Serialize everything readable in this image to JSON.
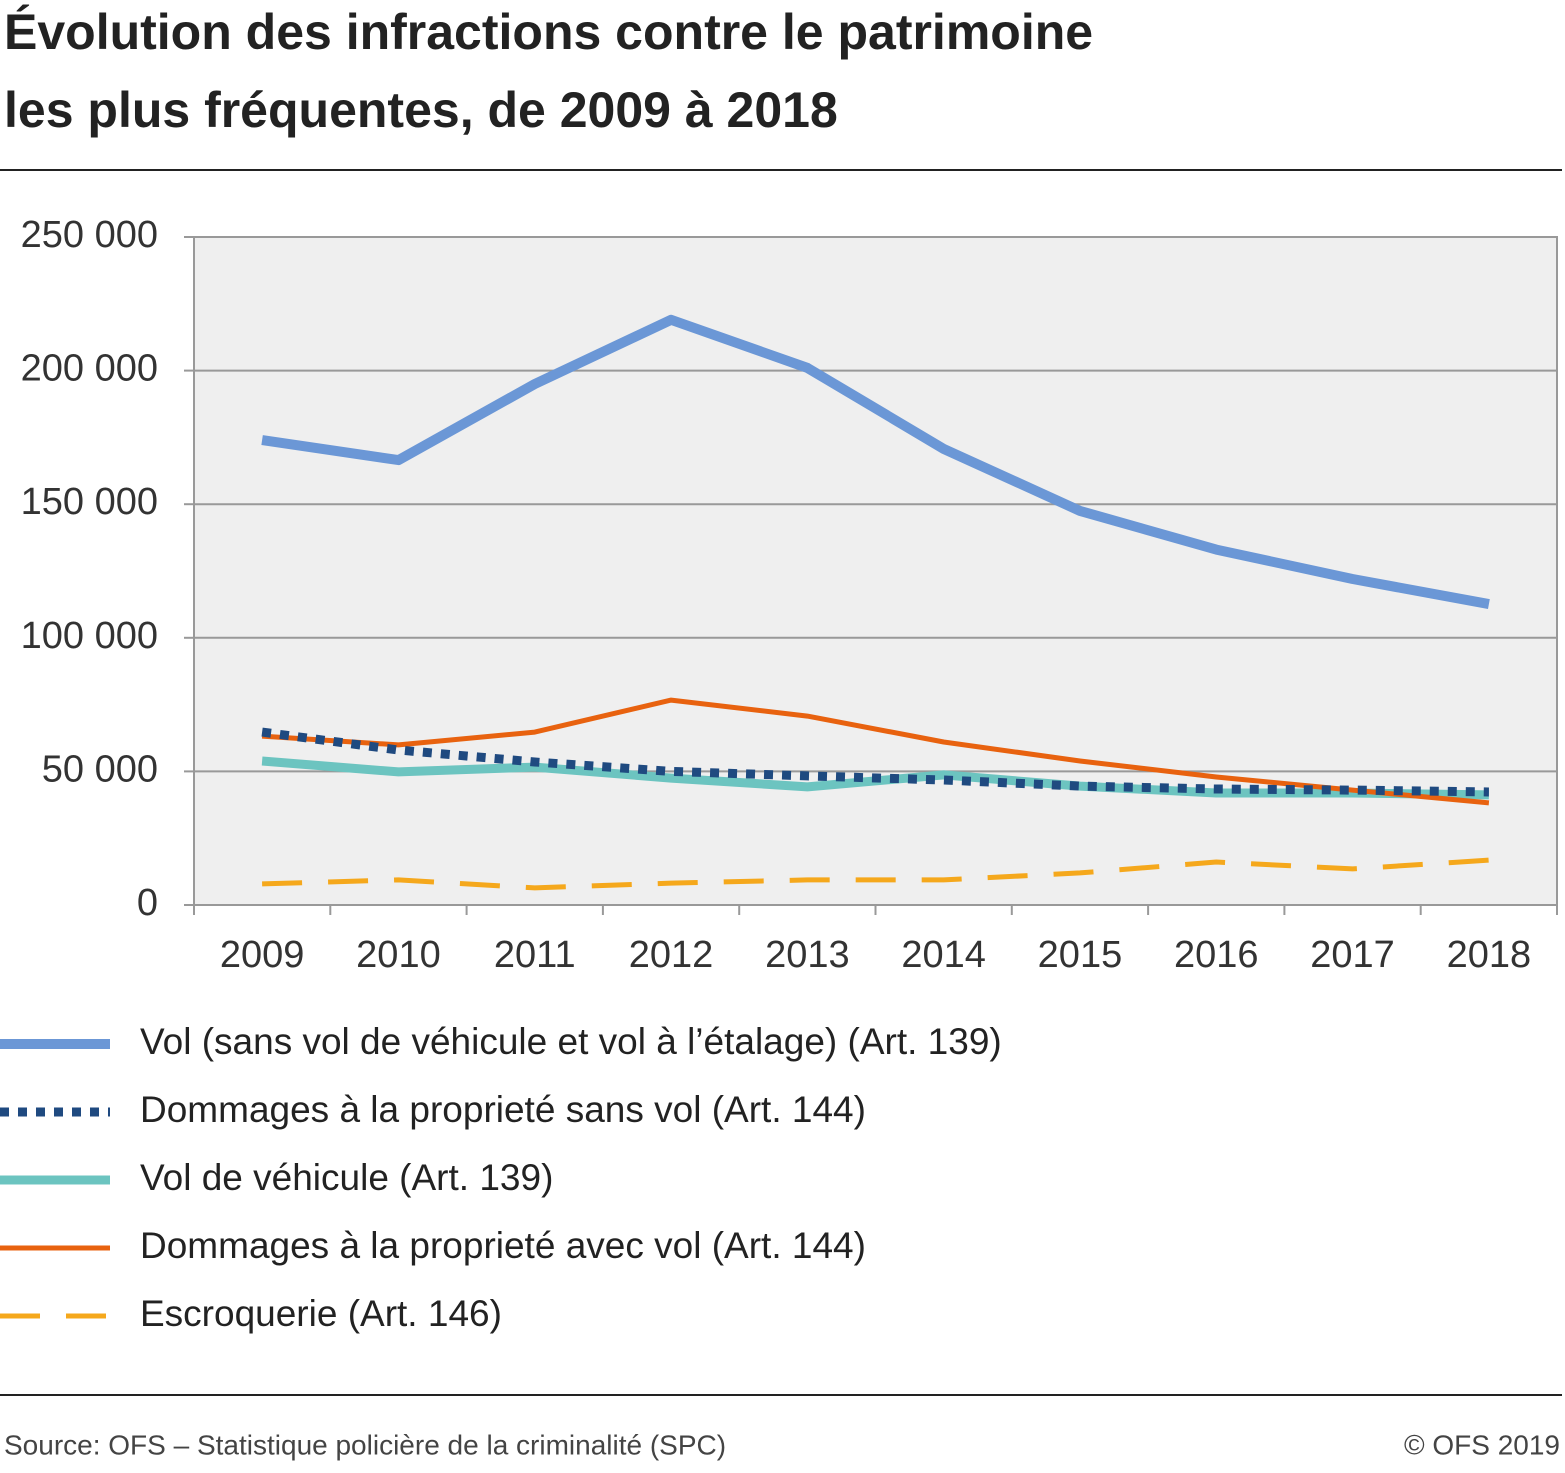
{
  "chart_data": {
    "type": "line",
    "title": [
      "Évolution des infractions contre le patrimoine",
      "les plus fréquentes, de 2009 à 2018"
    ],
    "categories": [
      "2009",
      "2010",
      "2011",
      "2012",
      "2013",
      "2014",
      "2015",
      "2016",
      "2017",
      "2018"
    ],
    "series": [
      {
        "name": "Vol (sans vol de véhicule et vol à l’étalage) (Art. 139)",
        "color": "#6b97d6",
        "line_style": "solid",
        "values": [
          174000,
          166500,
          195000,
          219000,
          201000,
          170700,
          147500,
          133000,
          122000,
          112600
        ]
      },
      {
        "name": "Dommages à la proprieté sans vol (Art. 144)",
        "color": "#1f4a80",
        "line_style": "dotted",
        "values": [
          64700,
          58000,
          53500,
          50000,
          48300,
          46800,
          44500,
          43400,
          43000,
          42300
        ]
      },
      {
        "name": "Vol de véhicule (Art. 139)",
        "color": "#6cc4c0",
        "line_style": "solid",
        "values": [
          53900,
          49800,
          51600,
          47500,
          44200,
          48700,
          44500,
          41900,
          41900,
          41200
        ]
      },
      {
        "name": "Dommages à la proprieté avec vol (Art. 144)",
        "color": "#e8620f",
        "line_style": "solid",
        "values": [
          63200,
          59900,
          64700,
          76700,
          70700,
          61000,
          53900,
          47900,
          43000,
          38200
        ]
      },
      {
        "name": "Escroquerie (Art. 146)",
        "color": "#f5a81c",
        "line_style": "dashed",
        "values": [
          7900,
          9400,
          6400,
          8200,
          9400,
          9400,
          12000,
          16100,
          13500,
          16800
        ]
      }
    ],
    "ylim": [
      0,
      250000
    ],
    "yticks": [
      0,
      {
        "value": 50000,
        "label": "50 000"
      },
      {
        "value": 100000,
        "label": "100 000"
      },
      {
        "value": 150000,
        "label": "150 000"
      },
      {
        "value": 200000,
        "label": "200 000"
      },
      {
        "value": 250000,
        "label": "250 000"
      }
    ],
    "grid": true,
    "source": "Source: OFS – Statistique policière de la criminalité (SPC)",
    "copyright": "© OFS 2019"
  }
}
